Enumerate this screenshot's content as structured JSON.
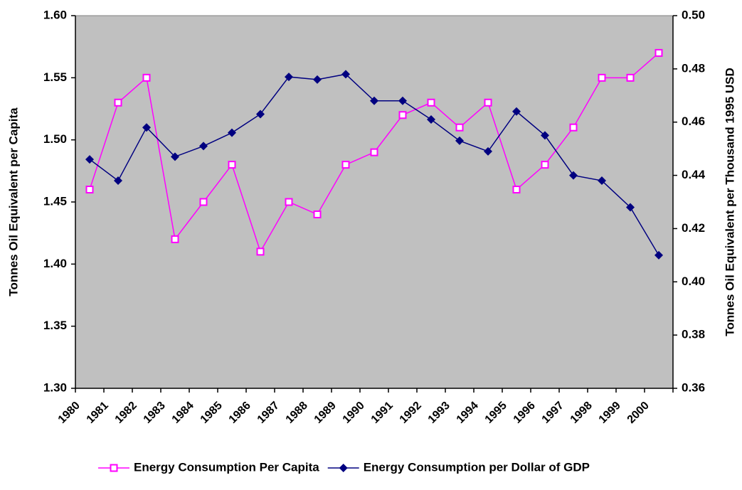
{
  "chart_data": {
    "type": "line",
    "categories": [
      "1980",
      "1981",
      "1982",
      "1983",
      "1984",
      "1985",
      "1986",
      "1987",
      "1988",
      "1989",
      "1990",
      "1991",
      "1992",
      "1993",
      "1994",
      "1995",
      "1996",
      "1997",
      "1998",
      "1999",
      "2000"
    ],
    "y_label": "Tonnes Oil Equivalent per Capita",
    "y2_label": "Tonnes Oil Equivalent per Thousand 1995 USD",
    "ylim": [
      1.3,
      1.6
    ],
    "yticks": [
      {
        "value": 1.3,
        "label": "1.30"
      },
      {
        "value": 1.35,
        "label": "1.35"
      },
      {
        "value": 1.4,
        "label": "1.40"
      },
      {
        "value": 1.45,
        "label": "1.45"
      },
      {
        "value": 1.5,
        "label": "1.50"
      },
      {
        "value": 1.55,
        "label": "1.55"
      },
      {
        "value": 1.6,
        "label": "1.60"
      }
    ],
    "y2lim": [
      0.36,
      0.5
    ],
    "y2ticks": [
      {
        "value": 0.36,
        "label": "0.36"
      },
      {
        "value": 0.38,
        "label": "0.38"
      },
      {
        "value": 0.4,
        "label": "0.40"
      },
      {
        "value": 0.42,
        "label": "0.42"
      },
      {
        "value": 0.44,
        "label": "0.44"
      },
      {
        "value": 0.46,
        "label": "0.46"
      },
      {
        "value": 0.48,
        "label": "0.48"
      },
      {
        "value": 0.5,
        "label": "0.50"
      }
    ],
    "series": [
      {
        "name": "Energy Consumption Per Capita",
        "color": "#ff00ff",
        "marker": "square",
        "values": [
          1.46,
          1.53,
          1.55,
          1.42,
          1.45,
          1.48,
          1.41,
          1.45,
          1.44,
          1.48,
          1.49,
          1.52,
          1.53,
          1.51,
          1.53,
          1.46,
          1.48,
          1.51,
          1.55,
          1.55,
          1.57
        ]
      },
      {
        "name": "Energy Consumption per Dollar of GDP",
        "color": "#000080",
        "marker": "diamond",
        "axis": "y2",
        "values": [
          0.446,
          0.438,
          0.458,
          0.447,
          0.451,
          0.456,
          0.463,
          0.477,
          0.476,
          0.478,
          0.468,
          0.468,
          0.461,
          0.453,
          0.449,
          0.464,
          0.455,
          0.44,
          0.438,
          0.428,
          0.41
        ]
      }
    ],
    "plot_background": "#c0c0c0",
    "legend": "bottom"
  }
}
